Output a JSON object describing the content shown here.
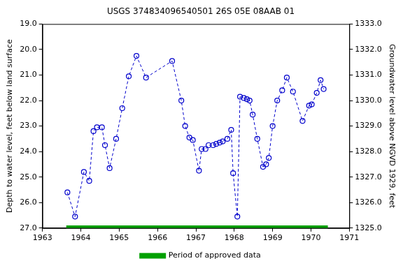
{
  "chart_data": {
    "type": "line",
    "title": "USGS 374834096540501 26S 05E 08AAB 01",
    "y_label": "Depth to water level, feet below land surface",
    "y2_label": "Groundwater level above NGVD 1929, feet",
    "xlim": [
      1963,
      1971
    ],
    "xticks": [
      1963,
      1964,
      1965,
      1966,
      1967,
      1968,
      1969,
      1970,
      1971
    ],
    "ylim": [
      27,
      19
    ],
    "yticks": [
      {
        "value": 19,
        "label": "19.0"
      },
      {
        "value": 20,
        "label": "20.0"
      },
      {
        "value": 21,
        "label": "21.0"
      },
      {
        "value": 22,
        "label": "22.0"
      },
      {
        "value": 23,
        "label": "23.0"
      },
      {
        "value": 24,
        "label": "24.0"
      },
      {
        "value": 25,
        "label": "25.0"
      },
      {
        "value": 26,
        "label": "26.0"
      },
      {
        "value": 27,
        "label": "27.0"
      }
    ],
    "y2lim": [
      1325,
      1333
    ],
    "y2ticks": [
      {
        "value": 1325,
        "label": "1325.0"
      },
      {
        "value": 1326,
        "label": "1326.0"
      },
      {
        "value": 1327,
        "label": "1327.0"
      },
      {
        "value": 1328,
        "label": "1328.0"
      },
      {
        "value": 1329,
        "label": "1329.0"
      },
      {
        "value": 1330,
        "label": "1330.0"
      },
      {
        "value": 1331,
        "label": "1331.0"
      },
      {
        "value": 1332,
        "label": "1332.0"
      },
      {
        "value": 1333,
        "label": "1333.0"
      }
    ],
    "grid": false,
    "legend": "bottom",
    "series": [
      {
        "color": "#0000cc",
        "marker": "circle",
        "line_style": "dashed",
        "x": [
          1963.65,
          1963.85,
          1964.08,
          1964.22,
          1964.33,
          1964.42,
          1964.55,
          1964.63,
          1964.75,
          1964.92,
          1965.08,
          1965.25,
          1965.45,
          1965.7,
          1966.38,
          1966.62,
          1966.72,
          1966.83,
          1966.92,
          1967.08,
          1967.15,
          1967.25,
          1967.33,
          1967.45,
          1967.53,
          1967.62,
          1967.7,
          1967.82,
          1967.92,
          1967.97,
          1968.08,
          1968.15,
          1968.25,
          1968.33,
          1968.4,
          1968.48,
          1968.6,
          1968.75,
          1968.83,
          1968.9,
          1969.0,
          1969.12,
          1969.25,
          1969.37,
          1969.53,
          1969.78,
          1969.95,
          1970.02,
          1970.15,
          1970.25,
          1970.33
        ],
        "values": [
          25.6,
          26.55,
          24.8,
          25.15,
          23.2,
          23.05,
          23.05,
          23.75,
          24.65,
          23.5,
          22.3,
          21.05,
          20.25,
          21.1,
          20.45,
          22.0,
          23.0,
          23.45,
          23.55,
          24.75,
          23.9,
          23.9,
          23.75,
          23.75,
          23.7,
          23.65,
          23.6,
          23.5,
          23.15,
          24.85,
          26.55,
          21.85,
          21.9,
          21.95,
          22.0,
          22.55,
          23.5,
          24.6,
          24.5,
          24.25,
          23.0,
          22.0,
          21.6,
          21.1,
          21.65,
          22.8,
          22.2,
          22.15,
          21.7,
          21.2,
          21.55
        ]
      },
      {
        "name": "Period of approved data",
        "color": "#00a000",
        "x": [
          1963.62,
          1970.44
        ],
        "values": [
          26.95,
          26.95
        ]
      }
    ]
  }
}
